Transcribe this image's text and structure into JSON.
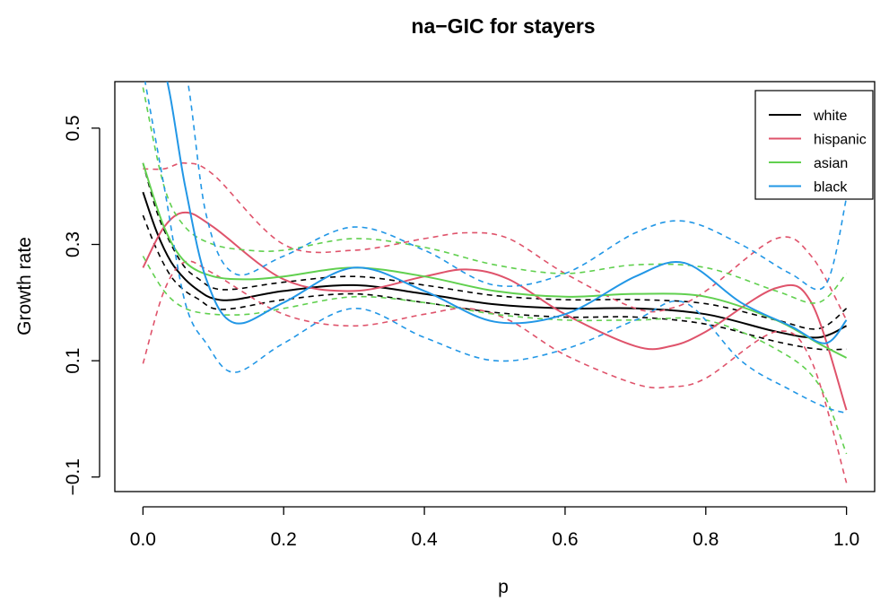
{
  "chart_data": {
    "type": "line",
    "title": "na−GIC for stayers",
    "xlabel": "p",
    "ylabel": "Growth rate",
    "xlim": [
      -0.04,
      1.04
    ],
    "ylim": [
      -0.125,
      0.58
    ],
    "x_ticks": [
      0.0,
      0.2,
      0.4,
      0.6,
      0.8,
      1.0
    ],
    "x_tick_labels": [
      "0.0",
      "0.2",
      "0.4",
      "0.6",
      "0.8",
      "1.0"
    ],
    "y_ticks": [
      -0.1,
      0.1,
      0.3,
      0.5
    ],
    "y_tick_labels": [
      "−0.1",
      "0.1",
      "0.3",
      "0.5"
    ],
    "legend_position": "top-right",
    "legend_bounds": "dashed lines are confidence bounds",
    "series": [
      {
        "name": "white",
        "color": "#000000",
        "x": [
          0.0,
          0.02,
          0.04,
          0.06,
          0.08,
          0.1,
          0.13,
          0.2,
          0.3,
          0.4,
          0.5,
          0.6,
          0.7,
          0.8,
          0.9,
          0.96,
          1.0
        ],
        "y": [
          0.39,
          0.32,
          0.27,
          0.24,
          0.22,
          0.207,
          0.205,
          0.22,
          0.23,
          0.215,
          0.197,
          0.19,
          0.19,
          0.18,
          0.15,
          0.14,
          0.16
        ],
        "lower": [
          0.35,
          0.29,
          0.245,
          0.22,
          0.205,
          0.19,
          0.19,
          0.205,
          0.215,
          0.2,
          0.183,
          0.175,
          0.175,
          0.163,
          0.133,
          0.12,
          0.12
        ],
        "upper": [
          0.44,
          0.355,
          0.3,
          0.26,
          0.24,
          0.225,
          0.223,
          0.235,
          0.245,
          0.23,
          0.212,
          0.205,
          0.205,
          0.198,
          0.17,
          0.155,
          0.19
        ]
      },
      {
        "name": "hispanic",
        "color": "#DF536B",
        "x": [
          0.0,
          0.03,
          0.06,
          0.1,
          0.2,
          0.3,
          0.4,
          0.46,
          0.52,
          0.6,
          0.7,
          0.75,
          0.8,
          0.9,
          0.95,
          1.0
        ],
        "y": [
          0.26,
          0.33,
          0.355,
          0.33,
          0.24,
          0.22,
          0.245,
          0.257,
          0.24,
          0.18,
          0.125,
          0.125,
          0.15,
          0.225,
          0.2,
          0.015
        ],
        "lower": [
          0.095,
          0.22,
          0.27,
          0.25,
          0.18,
          0.16,
          0.18,
          0.19,
          0.17,
          0.11,
          0.06,
          0.055,
          0.07,
          0.15,
          0.1,
          -0.11
        ],
        "upper": [
          0.43,
          0.43,
          0.44,
          0.42,
          0.3,
          0.29,
          0.31,
          0.32,
          0.31,
          0.25,
          0.19,
          0.19,
          0.22,
          0.31,
          0.28,
          0.17
        ]
      },
      {
        "name": "asian",
        "color": "#61D04F",
        "x": [
          0.0,
          0.03,
          0.06,
          0.1,
          0.15,
          0.2,
          0.3,
          0.4,
          0.5,
          0.6,
          0.7,
          0.8,
          0.9,
          0.96,
          1.0
        ],
        "y": [
          0.44,
          0.33,
          0.27,
          0.245,
          0.24,
          0.245,
          0.26,
          0.245,
          0.22,
          0.21,
          0.215,
          0.21,
          0.17,
          0.13,
          0.105
        ],
        "lower": [
          0.28,
          0.22,
          0.19,
          0.18,
          0.18,
          0.19,
          0.21,
          0.2,
          0.18,
          0.17,
          0.17,
          0.17,
          0.12,
          0.06,
          -0.06
        ],
        "upper": [
          0.57,
          0.4,
          0.33,
          0.3,
          0.29,
          0.29,
          0.31,
          0.295,
          0.265,
          0.25,
          0.265,
          0.26,
          0.22,
          0.2,
          0.25
        ]
      },
      {
        "name": "black",
        "color": "#2297E6",
        "x": [
          0.0,
          0.03,
          0.06,
          0.09,
          0.13,
          0.2,
          0.3,
          0.4,
          0.5,
          0.6,
          0.7,
          0.77,
          0.85,
          0.92,
          0.97,
          1.0
        ],
        "y": [
          0.6,
          0.6,
          0.4,
          0.24,
          0.165,
          0.2,
          0.26,
          0.22,
          0.167,
          0.18,
          0.245,
          0.268,
          0.2,
          0.16,
          0.13,
          0.17
        ],
        "lower": [
          0.6,
          0.4,
          0.2,
          0.13,
          0.08,
          0.13,
          0.19,
          0.14,
          0.1,
          0.12,
          0.17,
          0.2,
          0.1,
          0.05,
          0.02,
          0.01
        ],
        "upper": [
          0.6,
          0.6,
          0.6,
          0.35,
          0.25,
          0.28,
          0.33,
          0.29,
          0.23,
          0.25,
          0.32,
          0.34,
          0.3,
          0.25,
          0.23,
          0.38
        ]
      }
    ]
  }
}
